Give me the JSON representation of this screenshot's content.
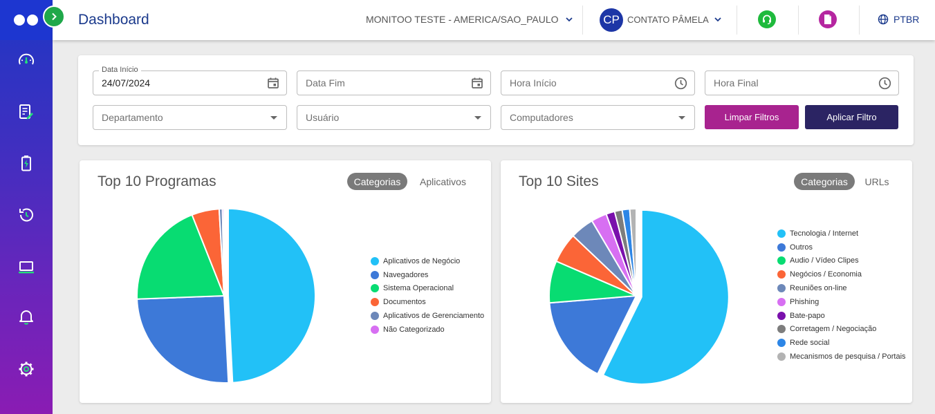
{
  "header": {
    "title": "Dashboard",
    "company_timezone": "MONITOO TESTE - AMERICA/SAO_PAULO",
    "user_initials": "CP",
    "user_name": "CONTATO PÂMELA",
    "language": "PTBR"
  },
  "sidebar": {
    "items": [
      {
        "icon": "speedometer-icon"
      },
      {
        "icon": "report-edit-icon"
      },
      {
        "icon": "battery-charging-icon"
      },
      {
        "icon": "history-icon"
      },
      {
        "icon": "laptop-icon"
      },
      {
        "icon": "bell-icon"
      },
      {
        "icon": "gear-icon"
      }
    ]
  },
  "filters": {
    "start_date_label": "Data Início",
    "start_date_value": "24/07/2024",
    "end_date_placeholder": "Data Fim",
    "start_time_placeholder": "Hora Início",
    "end_time_placeholder": "Hora Final",
    "department_placeholder": "Departamento",
    "user_placeholder": "Usuário",
    "computers_placeholder": "Computadores",
    "clear_label": "Limpar Filtros",
    "apply_label": "Aplicar Filtro"
  },
  "colors": {
    "sidebar_top": "#1f37c4",
    "sidebar_bottom": "#8a1cb3",
    "title_blue": "#1b3a8c",
    "clear_button": "#a8238f",
    "apply_button": "#2b2463",
    "support_button": "#1fba3d",
    "docs_button": "#b526a0"
  },
  "programs": {
    "title": "Top 10 Programas",
    "tab_active": "Categorias",
    "tab_inactive": "Aplicativos"
  },
  "sites": {
    "title": "Top 10 Sites",
    "tab_active": "Categorias",
    "tab_inactive": "URLs"
  },
  "chart_data": [
    {
      "type": "pie",
      "title": "Top 10 Programas",
      "categories": [
        "Aplicativos de Negócio",
        "Navegadores",
        "Sistema Operacional",
        "Documentos",
        "Aplicativos de Gerenciamento",
        "Não Categorizado"
      ],
      "values": [
        49.2,
        25.2,
        19.6,
        5.1,
        0.6,
        0.3
      ],
      "colors": [
        "#22c1f7",
        "#3d79d8",
        "#08dc72",
        "#fb6537",
        "#6d88b9",
        "#d76ff2"
      ],
      "legend_position": "right"
    },
    {
      "type": "pie",
      "title": "Top 10 Sites",
      "categories": [
        "Tecnologia / Internet",
        "Outros",
        "Audio / Vídeo Clipes",
        "Negócios / Economia",
        "Reuniões on-line",
        "Phishing",
        "Bate-papo",
        "Corretagem / Negociação",
        "Rede social",
        "Mecanismos de pesquisa / Portais"
      ],
      "values": [
        57.3,
        16.4,
        7.8,
        5.6,
        4.4,
        2.9,
        1.6,
        1.4,
        1.4,
        1.2
      ],
      "colors": [
        "#22c1f7",
        "#3d79d8",
        "#08dc72",
        "#fb6537",
        "#6d88b9",
        "#d76ff2",
        "#7a10ac",
        "#7d7d7d",
        "#2d86e6",
        "#b3b3b3"
      ],
      "legend_position": "right"
    }
  ]
}
